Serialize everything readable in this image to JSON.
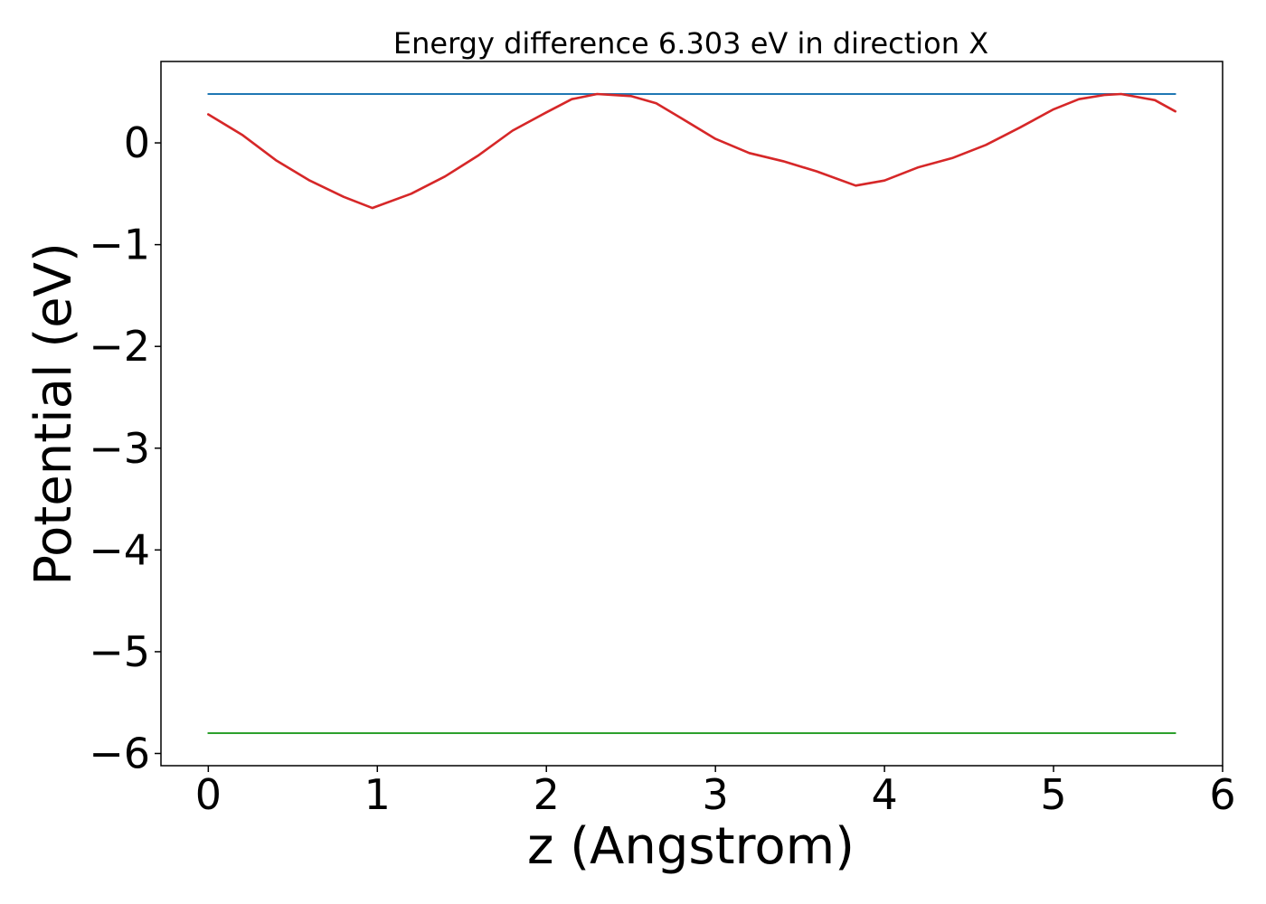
{
  "chart_data": {
    "type": "line",
    "title": "Energy difference 6.303 eV in direction X",
    "xlabel": "z (Angstrom)",
    "ylabel": "Potential (eV)",
    "xlim": [
      -0.28,
      6.0
    ],
    "ylim": [
      -6.12,
      0.8
    ],
    "xticks": [
      0,
      1,
      2,
      3,
      4,
      5,
      6
    ],
    "xtick_labels": [
      "0",
      "1",
      "2",
      "3",
      "4",
      "5",
      "6"
    ],
    "yticks": [
      0,
      -1,
      -2,
      -3,
      -4,
      -5,
      -6
    ],
    "ytick_labels": [
      "0",
      "−1",
      "−2",
      "−3",
      "−4",
      "−5",
      "−6"
    ],
    "grid": false,
    "legend": "none",
    "series": [
      {
        "color": "#1f77b4",
        "x": [
          0,
          5.72
        ],
        "y": [
          0.48,
          0.48
        ]
      },
      {
        "color": "#2ca02c",
        "x": [
          0,
          5.72
        ],
        "y": [
          -5.8,
          -5.8
        ]
      },
      {
        "color": "#d62728",
        "x": [
          0,
          0.2,
          0.4,
          0.6,
          0.8,
          0.97,
          1.2,
          1.4,
          1.6,
          1.8,
          2.0,
          2.15,
          2.3,
          2.5,
          2.65,
          2.8,
          3.0,
          3.2,
          3.4,
          3.6,
          3.83,
          4.0,
          4.2,
          4.4,
          4.6,
          4.8,
          5.0,
          5.15,
          5.3,
          5.4,
          5.6,
          5.72
        ],
        "y": [
          0.28,
          0.08,
          -0.17,
          -0.37,
          -0.53,
          -0.64,
          -0.5,
          -0.33,
          -0.12,
          0.12,
          0.3,
          0.43,
          0.48,
          0.46,
          0.39,
          0.24,
          0.04,
          -0.1,
          -0.18,
          -0.28,
          -0.42,
          -0.37,
          -0.24,
          -0.15,
          -0.02,
          0.15,
          0.33,
          0.43,
          0.47,
          0.48,
          0.42,
          0.31
        ]
      }
    ]
  }
}
